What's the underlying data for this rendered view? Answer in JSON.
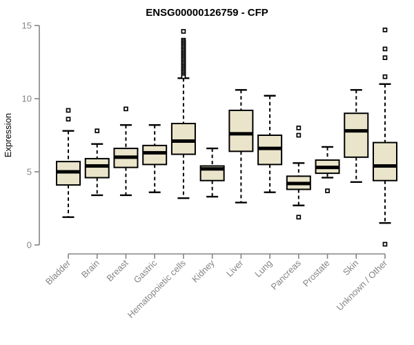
{
  "chart_data": {
    "type": "boxplot",
    "title": "ENSG00000126759 - CFP",
    "ylabel": "Expression",
    "xlabel": "",
    "ylim": [
      0,
      15
    ],
    "yticks": [
      0,
      5,
      10,
      15
    ],
    "grid": false,
    "legend": false,
    "axis_color": "#848484",
    "box_fill": "#EAE5CA",
    "box_line_color": "#000000",
    "categories": [
      "Bladder",
      "Brain",
      "Breast",
      "Gastric",
      "Hematopoietic cells",
      "Kidney",
      "Liver",
      "Lung",
      "Pancreas",
      "Prostate",
      "Skin",
      "Unknown / Other"
    ],
    "series": [
      {
        "category": "Bladder",
        "whisker_low": 1.9,
        "q1": 4.1,
        "median": 5.0,
        "q3": 5.7,
        "whisker_high": 7.8,
        "outliers": [
          8.6,
          9.2
        ]
      },
      {
        "category": "Brain",
        "whisker_low": 3.4,
        "q1": 4.6,
        "median": 5.4,
        "q3": 5.9,
        "whisker_high": 6.9,
        "outliers": [
          7.8
        ]
      },
      {
        "category": "Breast",
        "whisker_low": 3.4,
        "q1": 5.3,
        "median": 6.0,
        "q3": 6.6,
        "whisker_high": 8.2,
        "outliers": [
          9.3
        ]
      },
      {
        "category": "Gastric",
        "whisker_low": 3.6,
        "q1": 5.5,
        "median": 6.3,
        "q3": 6.8,
        "whisker_high": 8.2,
        "outliers": []
      },
      {
        "category": "Hematopoietic cells",
        "whisker_low": 3.2,
        "q1": 6.2,
        "median": 7.1,
        "q3": 8.3,
        "whisker_high": 11.4,
        "outliers": [
          14.6,
          14.0,
          13.9,
          13.8,
          13.7,
          13.6,
          13.5,
          13.4,
          13.3,
          13.2,
          13.1,
          13.0,
          12.9,
          12.8,
          12.7,
          12.6,
          12.5,
          12.4,
          12.3,
          12.2,
          12.1,
          12.0,
          11.9,
          11.8,
          11.7,
          11.6,
          11.5
        ]
      },
      {
        "category": "Kidney",
        "whisker_low": 3.3,
        "q1": 4.4,
        "median": 5.2,
        "q3": 5.4,
        "whisker_high": 6.6,
        "outliers": []
      },
      {
        "category": "Liver",
        "whisker_low": 2.9,
        "q1": 6.4,
        "median": 7.6,
        "q3": 9.2,
        "whisker_high": 10.6,
        "outliers": []
      },
      {
        "category": "Lung",
        "whisker_low": 3.6,
        "q1": 5.5,
        "median": 6.6,
        "q3": 7.5,
        "whisker_high": 10.2,
        "outliers": []
      },
      {
        "category": "Pancreas",
        "whisker_low": 2.7,
        "q1": 3.8,
        "median": 4.2,
        "q3": 4.7,
        "whisker_high": 5.6,
        "outliers": [
          8.0,
          7.5,
          1.9
        ]
      },
      {
        "category": "Prostate",
        "whisker_low": 4.6,
        "q1": 4.9,
        "median": 5.3,
        "q3": 5.8,
        "whisker_high": 6.7,
        "outliers": [
          3.7
        ]
      },
      {
        "category": "Skin",
        "whisker_low": 4.3,
        "q1": 6.0,
        "median": 7.8,
        "q3": 9.0,
        "whisker_high": 10.6,
        "outliers": []
      },
      {
        "category": "Unknown / Other",
        "whisker_low": 1.5,
        "q1": 4.4,
        "median": 5.4,
        "q3": 7.0,
        "whisker_high": 11.0,
        "outliers": [
          14.7,
          13.4,
          12.8,
          11.5,
          0.05
        ]
      }
    ]
  }
}
